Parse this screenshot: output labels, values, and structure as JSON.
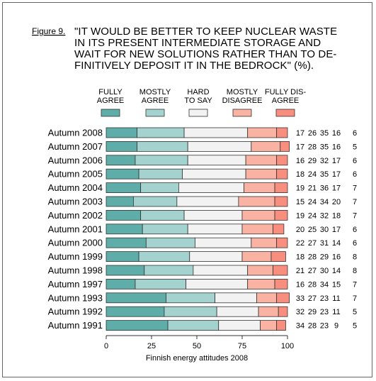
{
  "figure_label": "Figure 9.",
  "title_lines": [
    "\"IT WOULD BE BETTER TO KEEP NUCLEAR WASTE",
    "IN ITS PRESENT INTERMEDIATE STORAGE AND",
    "WAIT FOR NEW SOLUTIONS RATHER THAN TO DE-",
    "FINITIVELY DEPOSIT IT IN THE BEDROCK\" (%)."
  ],
  "caption": "Finnish energy attitudes 2008",
  "colors": {
    "fully_agree": "#5fada8",
    "mostly_agree": "#a3d2cf",
    "hard_to_say": "#f2f2f2",
    "mostly_disagree": "#fab2a3",
    "fully_disagree": "#f88e7d"
  },
  "chart_data": {
    "type": "bar",
    "orientation": "horizontal",
    "stacked": true,
    "title": "\"IT WOULD BE BETTER TO KEEP NUCLEAR WASTE IN ITS PRESENT INTERMEDIATE STORAGE AND WAIT FOR NEW SOLUTIONS RATHER THAN TO DE-FINITIVELY DEPOSIT IT IN THE BEDROCK\" (%).",
    "xlim": [
      0,
      100
    ],
    "xticks": [
      0,
      25,
      50,
      75,
      100
    ],
    "legend_position": "top",
    "categories": [
      "Autumn 2008",
      "Autumn 2007",
      "Autumn 2006",
      "Autumn 2005",
      "Autumn 2004",
      "Autumn 2003",
      "Autumn 2002",
      "Autumn 2001",
      "Autumn 2000",
      "Autumn 1999",
      "Autumn 1998",
      "Autumn 1997",
      "Autumn 1993",
      "Autumn 1992",
      "Autumn 1991"
    ],
    "series": [
      {
        "name": "FULLY AGREE",
        "legend_lines": [
          "FULLY",
          "AGREE"
        ],
        "color": "#5fada8",
        "values": [
          17,
          17,
          16,
          18,
          19,
          15,
          19,
          20,
          22,
          18,
          21,
          16,
          33,
          32,
          34
        ]
      },
      {
        "name": "MOSTLY AGREE",
        "legend_lines": [
          "MOSTLY",
          "AGREE"
        ],
        "color": "#a3d2cf",
        "values": [
          26,
          28,
          29,
          24,
          21,
          24,
          24,
          25,
          27,
          28,
          27,
          28,
          27,
          29,
          28
        ]
      },
      {
        "name": "HARD TO SAY",
        "legend_lines": [
          "HARD",
          "TO SAY"
        ],
        "color": "#f2f2f2",
        "values": [
          35,
          35,
          32,
          35,
          36,
          34,
          32,
          30,
          31,
          29,
          30,
          34,
          23,
          23,
          23
        ]
      },
      {
        "name": "MOSTLY DISAGREE",
        "legend_lines": [
          "MOSTLY",
          "DISAGREE"
        ],
        "color": "#fab2a3",
        "values": [
          16,
          16,
          17,
          17,
          17,
          20,
          18,
          17,
          14,
          16,
          14,
          15,
          11,
          11,
          9
        ]
      },
      {
        "name": "FULLY DIS-AGREE",
        "legend_lines": [
          "FULLY DIS-",
          "AGREE"
        ],
        "color": "#f88e7d",
        "values": [
          6,
          5,
          6,
          6,
          7,
          7,
          7,
          6,
          6,
          8,
          8,
          7,
          7,
          5,
          5
        ]
      }
    ]
  }
}
